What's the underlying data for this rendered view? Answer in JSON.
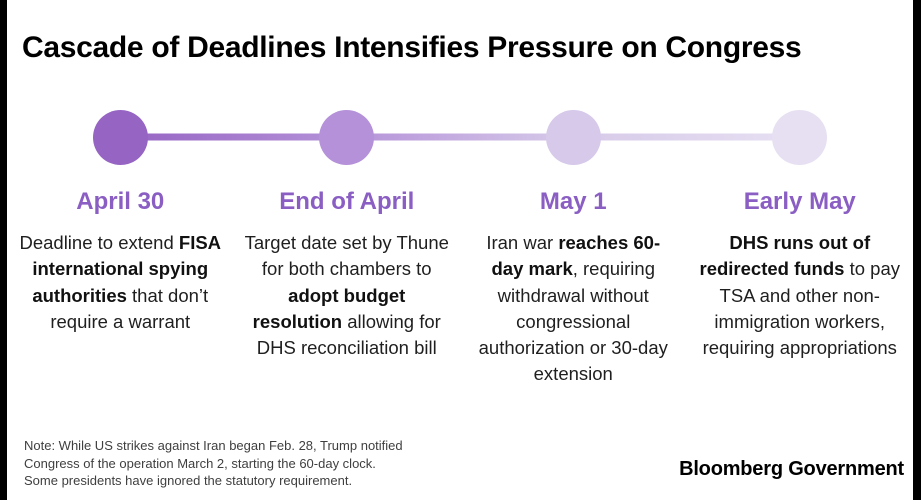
{
  "title": "Cascade of Deadlines Intensifies Pressure on Congress",
  "colors": {
    "heading_purple": "#8a5ec3",
    "edge_bar": "#000000",
    "body_text": "#1f1f1f",
    "note_text": "#3f3f3f",
    "background": "#ffffff"
  },
  "timeline": {
    "items": [
      {
        "label": "April 30",
        "dot_color": "#9664c3",
        "description": [
          {
            "text": "Deadline to extend ",
            "bold": false
          },
          {
            "text": "FISA international spying authorities",
            "bold": true
          },
          {
            "text": " that don’t require a warrant",
            "bold": false
          }
        ]
      },
      {
        "label": "End of April",
        "dot_color": "#b491d8",
        "description": [
          {
            "text": "Target date set by Thune for both chambers to ",
            "bold": false
          },
          {
            "text": "adopt budget resolution",
            "bold": true
          },
          {
            "text": " allowing for DHS reconciliation bill",
            "bold": false
          }
        ]
      },
      {
        "label": "May 1",
        "dot_color": "#d6c9e9",
        "description": [
          {
            "text": "Iran war ",
            "bold": false
          },
          {
            "text": "reaches 60-day mark",
            "bold": true
          },
          {
            "text": ", requiring withdrawal without congressional authorization or 30-day extension",
            "bold": false
          }
        ]
      },
      {
        "label": "Early May",
        "dot_color": "#e7e0f2",
        "description": [
          {
            "text": "DHS runs out of redirected funds",
            "bold": true
          },
          {
            "text": " to pay TSA and other non-immigration workers, requiring appropriations",
            "bold": false
          }
        ]
      }
    ]
  },
  "note": {
    "lines": [
      "Note: While US strikes against Iran began Feb. 28, Trump notified",
      "Congress of the operation March 2, starting the 60-day clock.",
      "Some presidents have ignored the statutory requirement."
    ]
  },
  "brand": "Bloomberg Government"
}
